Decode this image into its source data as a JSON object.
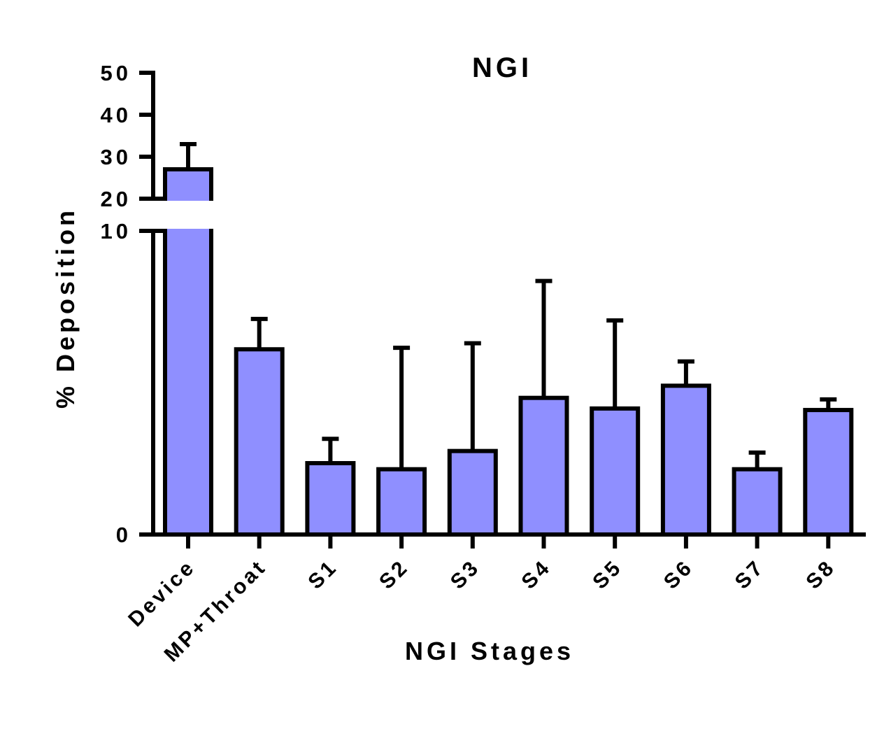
{
  "chart_data": {
    "type": "bar",
    "title": "NGI",
    "xlabel": "NGI Stages",
    "ylabel": "% Deposition",
    "categories": [
      "Device",
      "MP+Throat",
      "S1",
      "S2",
      "S3",
      "S4",
      "S5",
      "S6",
      "S7",
      "S8"
    ],
    "series": [
      {
        "values": [
          27,
          6.1,
          2.35,
          2.15,
          2.75,
          4.5,
          4.15,
          4.9,
          2.15,
          4.1
        ],
        "error_upper": [
          6,
          1.0,
          0.8,
          4.0,
          3.55,
          3.85,
          2.9,
          0.8,
          0.55,
          0.35
        ]
      }
    ],
    "y_axis": {
      "broken": true,
      "lower_segment": {
        "range": [
          0,
          10
        ],
        "ticks": [
          0,
          10
        ]
      },
      "upper_segment": {
        "range": [
          20,
          50
        ],
        "ticks": [
          20,
          30,
          40,
          50
        ]
      }
    },
    "y_tick_labels": [
      "0",
      "10",
      "20",
      "30",
      "40",
      "50"
    ],
    "colors": {
      "bar_fill": "#8f8fff",
      "stroke": "#000000"
    },
    "grid": false,
    "legend": "none"
  }
}
